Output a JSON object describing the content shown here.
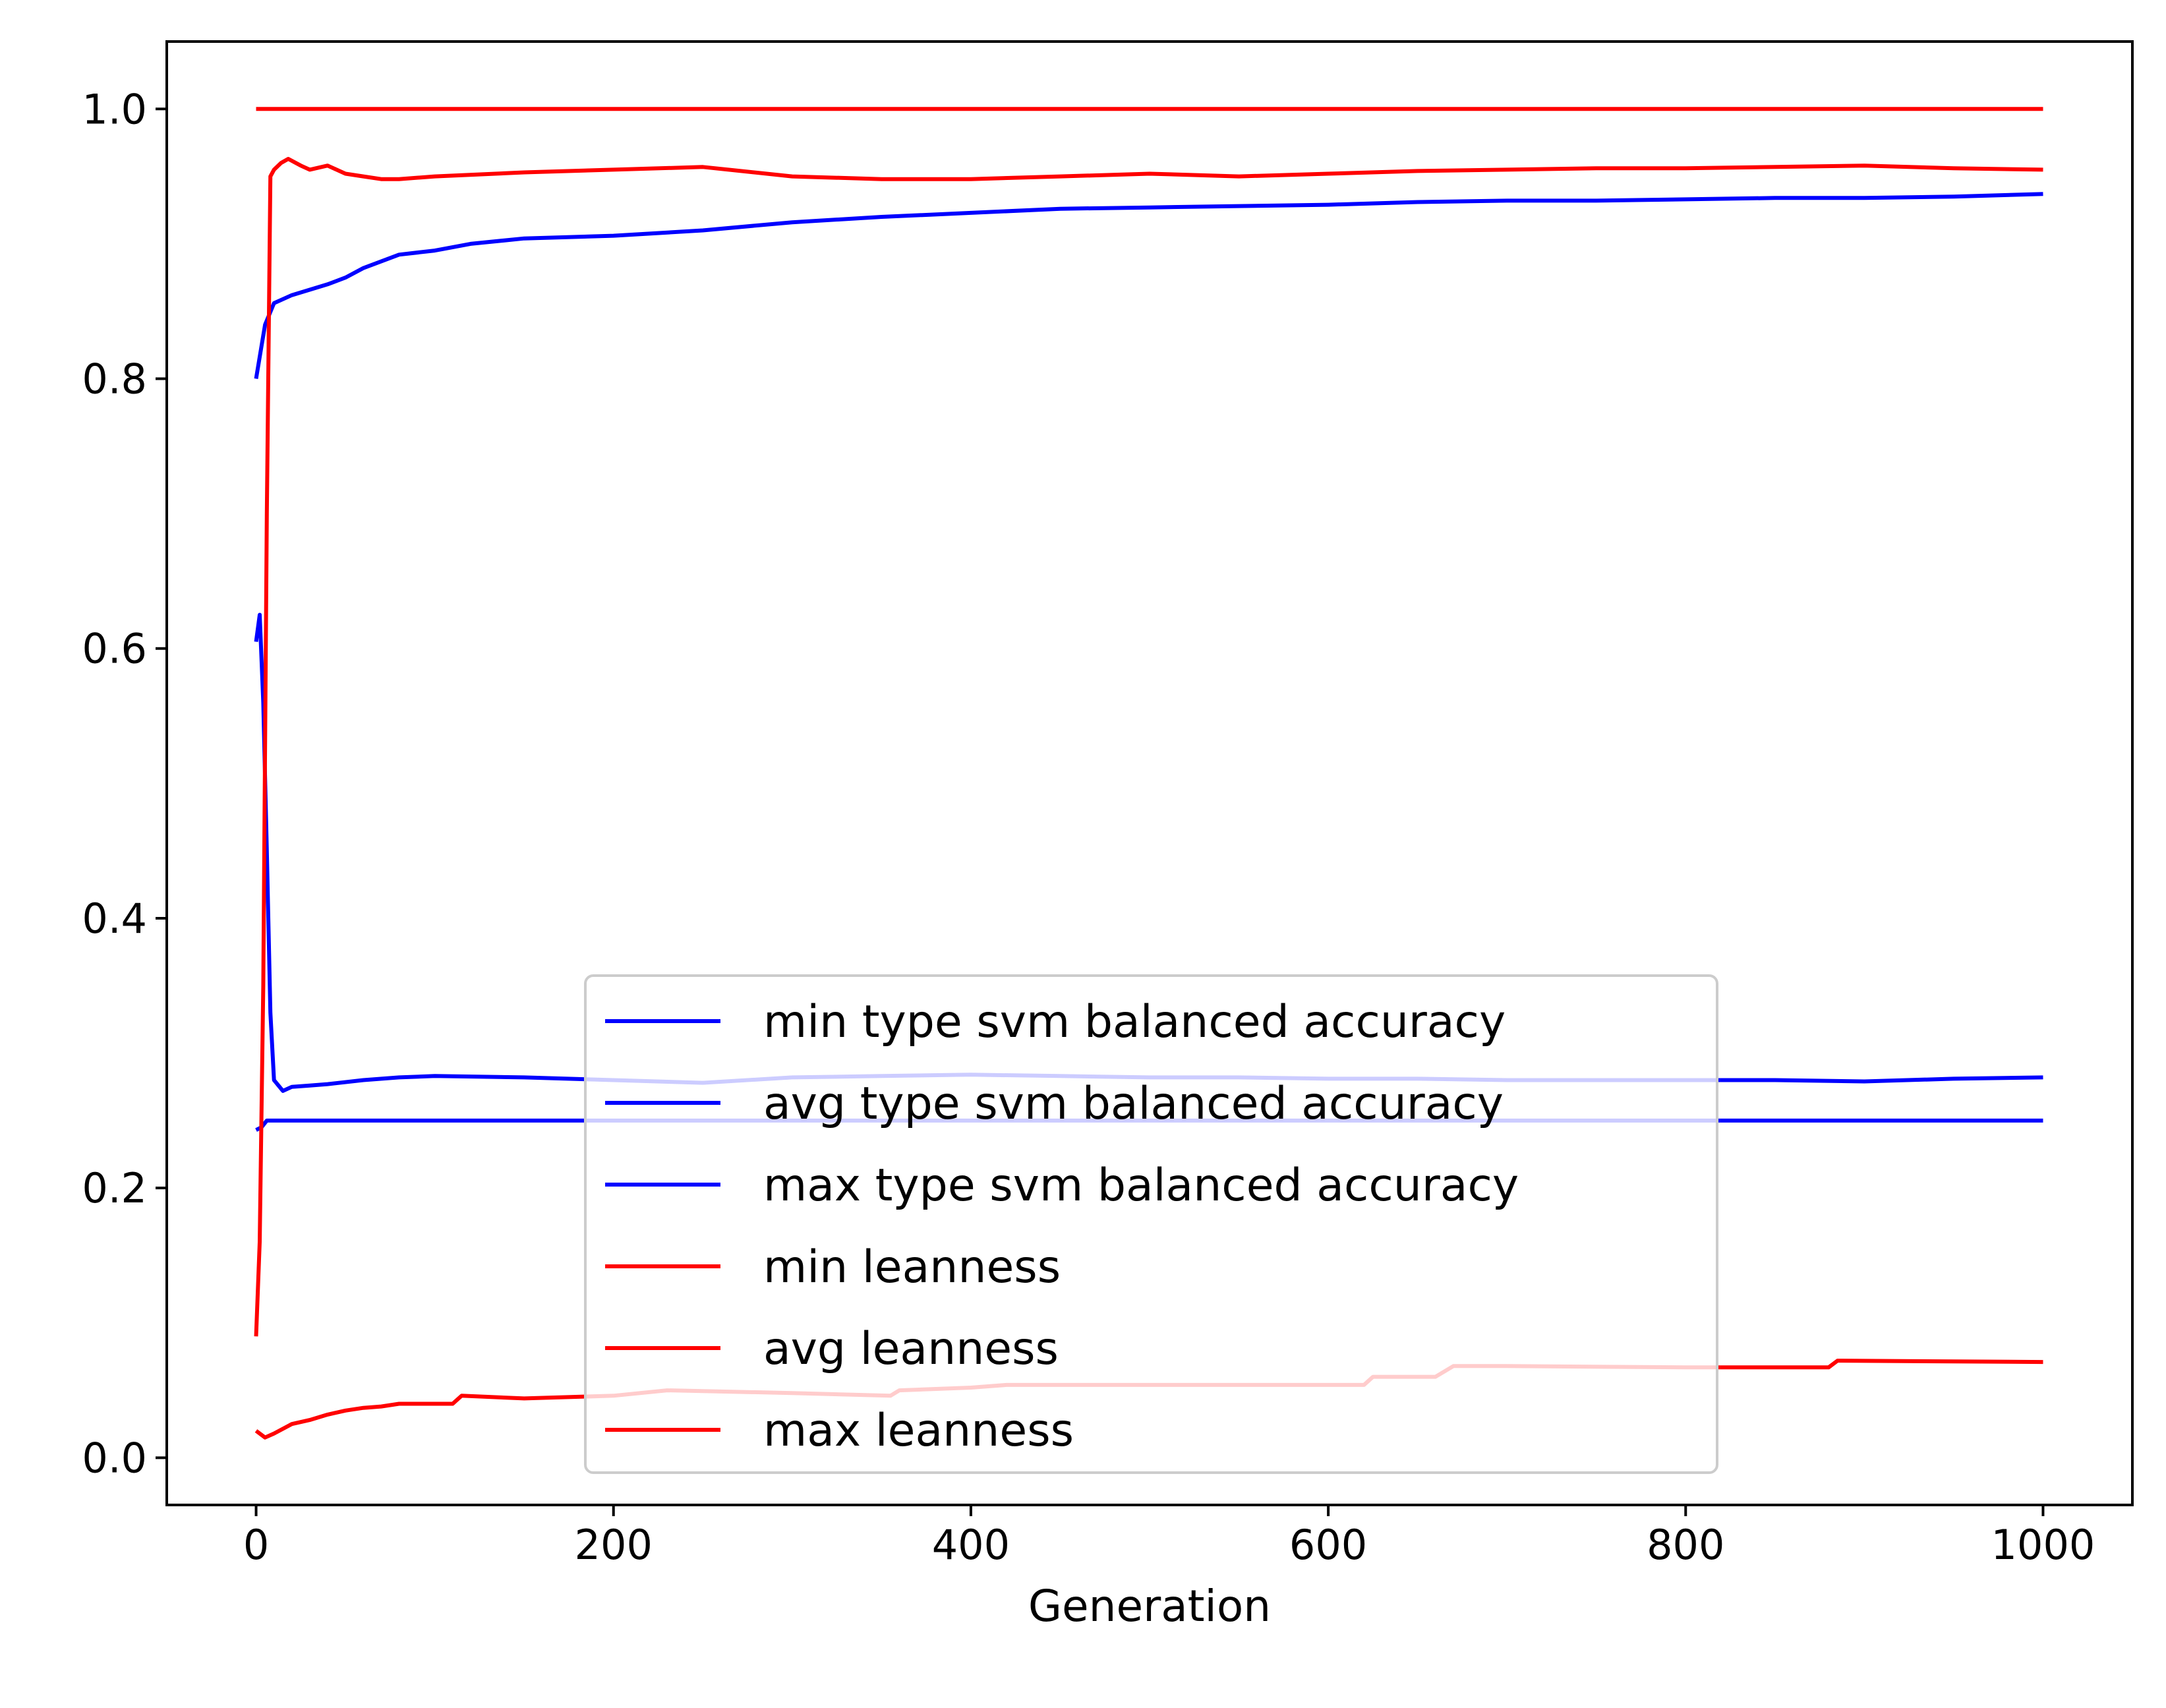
{
  "chart_data": {
    "type": "line",
    "title": "",
    "xlabel": "Generation",
    "ylabel": "",
    "xlim": [
      -50,
      1050
    ],
    "ylim": [
      -0.035,
      1.05
    ],
    "xticks": [
      0,
      200,
      400,
      600,
      800,
      1000
    ],
    "xtick_labels": [
      "0",
      "200",
      "400",
      "600",
      "800",
      "1000"
    ],
    "yticks": [
      0.0,
      0.2,
      0.4,
      0.6,
      0.8,
      1.0
    ],
    "ytick_labels": [
      "0.0",
      "0.2",
      "0.4",
      "0.6",
      "0.8",
      "1.0"
    ],
    "grid": false,
    "legend_position": "lower center",
    "series": [
      {
        "name": "min type svm balanced accuracy",
        "color": "#0000ff",
        "x": [
          0,
          3,
          6,
          1000
        ],
        "y": [
          0.243,
          0.245,
          0.25,
          0.25
        ]
      },
      {
        "name": "avg type svm balanced accuracy",
        "color": "#0000ff",
        "x": [
          0,
          2,
          4,
          6,
          8,
          10,
          15,
          20,
          30,
          40,
          60,
          80,
          100,
          150,
          200,
          250,
          300,
          350,
          400,
          450,
          500,
          550,
          600,
          650,
          700,
          750,
          800,
          850,
          900,
          950,
          1000
        ],
        "y": [
          0.605,
          0.625,
          0.56,
          0.45,
          0.33,
          0.28,
          0.272,
          0.275,
          0.276,
          0.277,
          0.28,
          0.282,
          0.283,
          0.282,
          0.28,
          0.278,
          0.282,
          0.283,
          0.284,
          0.283,
          0.282,
          0.282,
          0.281,
          0.281,
          0.28,
          0.28,
          0.28,
          0.28,
          0.279,
          0.281,
          0.282
        ]
      },
      {
        "name": "max type svm balanced accuracy",
        "color": "#0000ff",
        "x": [
          0,
          5,
          10,
          20,
          30,
          40,
          50,
          60,
          80,
          100,
          120,
          150,
          200,
          250,
          300,
          350,
          400,
          450,
          500,
          550,
          600,
          650,
          700,
          750,
          800,
          850,
          900,
          950,
          1000
        ],
        "y": [
          0.8,
          0.84,
          0.856,
          0.862,
          0.866,
          0.87,
          0.875,
          0.882,
          0.892,
          0.895,
          0.9,
          0.904,
          0.906,
          0.91,
          0.916,
          0.92,
          0.923,
          0.926,
          0.927,
          0.928,
          0.929,
          0.931,
          0.932,
          0.932,
          0.933,
          0.934,
          0.934,
          0.935,
          0.937
        ]
      },
      {
        "name": "min leanness",
        "color": "#ff0000",
        "x": [
          0,
          5,
          10,
          20,
          30,
          40,
          50,
          60,
          70,
          80,
          100,
          110,
          115,
          150,
          200,
          230,
          300,
          355,
          360,
          400,
          420,
          500,
          600,
          620,
          625,
          660,
          670,
          700,
          800,
          880,
          885,
          1000
        ],
        "y": [
          0.02,
          0.015,
          0.018,
          0.025,
          0.028,
          0.032,
          0.035,
          0.037,
          0.038,
          0.04,
          0.04,
          0.04,
          0.046,
          0.044,
          0.046,
          0.05,
          0.048,
          0.046,
          0.05,
          0.052,
          0.054,
          0.054,
          0.054,
          0.054,
          0.06,
          0.06,
          0.068,
          0.068,
          0.067,
          0.067,
          0.072,
          0.071
        ]
      },
      {
        "name": "avg leanness",
        "color": "#ff0000",
        "x": [
          0,
          2,
          4,
          6,
          8,
          10,
          14,
          18,
          25,
          30,
          40,
          50,
          60,
          70,
          80,
          100,
          150,
          200,
          250,
          300,
          350,
          400,
          450,
          500,
          550,
          600,
          650,
          700,
          750,
          800,
          850,
          900,
          950,
          1000
        ],
        "y": [
          0.09,
          0.16,
          0.35,
          0.7,
          0.95,
          0.955,
          0.96,
          0.963,
          0.958,
          0.955,
          0.958,
          0.952,
          0.95,
          0.948,
          0.948,
          0.95,
          0.953,
          0.955,
          0.957,
          0.95,
          0.948,
          0.948,
          0.95,
          0.952,
          0.95,
          0.952,
          0.954,
          0.955,
          0.956,
          0.956,
          0.957,
          0.958,
          0.956,
          0.955
        ]
      },
      {
        "name": "max leanness",
        "color": "#ff0000",
        "x": [
          0,
          1000
        ],
        "y": [
          1.0,
          1.0
        ]
      }
    ]
  }
}
